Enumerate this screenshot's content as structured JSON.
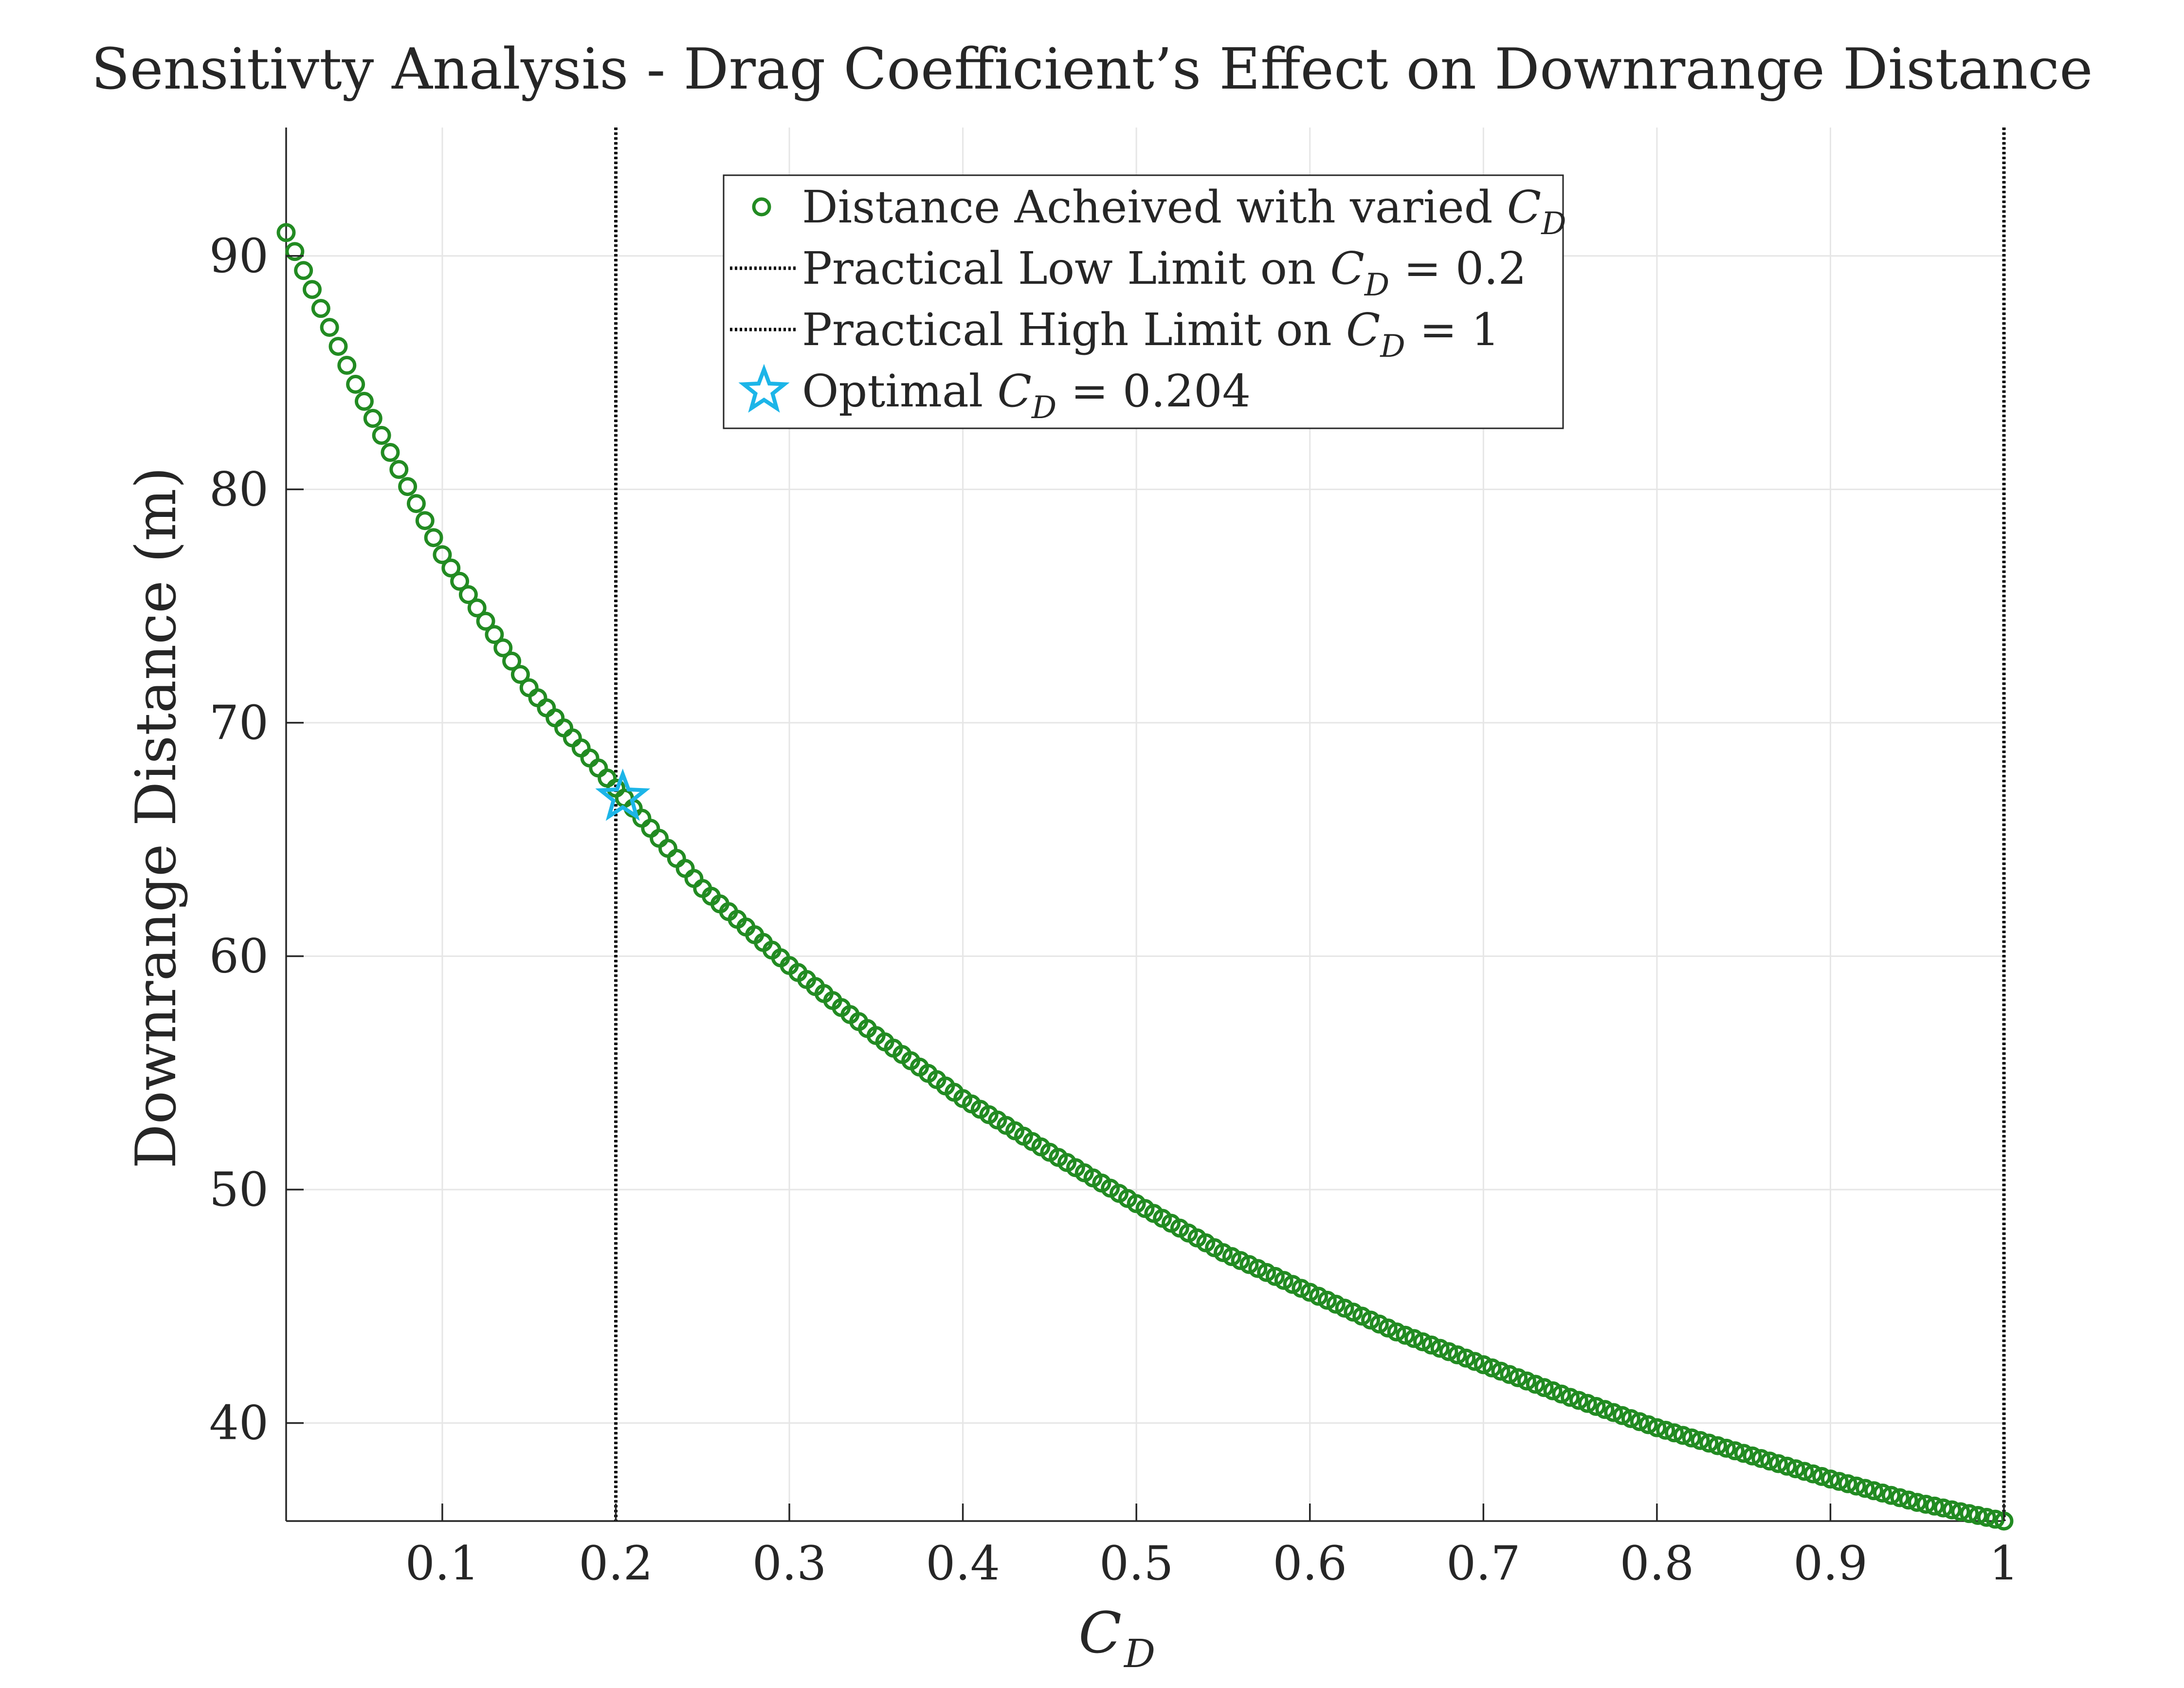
{
  "chart_data": {
    "type": "scatter",
    "title": "Sensitivty Analysis - Drag Coefficient’s Effect on Downrange Distance",
    "xlabel": {
      "base": "C",
      "sub": "D"
    },
    "ylabel": "Downrange Distance (m)",
    "xlim": [
      0.01,
      1.0
    ],
    "ylim": [
      35.8,
      95.5
    ],
    "xticks": [
      0.1,
      0.2,
      0.3,
      0.4,
      0.5,
      0.6,
      0.7,
      0.8,
      0.9,
      1
    ],
    "xtick_labels": [
      "0.1",
      "0.2",
      "0.3",
      "0.4",
      "0.5",
      "0.6",
      "0.7",
      "0.8",
      "0.9",
      "1"
    ],
    "yticks": [
      40,
      50,
      60,
      70,
      80,
      90
    ],
    "ytick_labels": [
      "40",
      "50",
      "60",
      "70",
      "80",
      "90"
    ],
    "grid": true,
    "legend_position": "top-center",
    "colors": {
      "series": "#228B22",
      "limit_lines": "#000000",
      "optimal": "#1CB5E8",
      "grid": "#e6e6e6",
      "axes": "#262626"
    },
    "series": [
      {
        "name": "Distance Acheived with varied C_D",
        "marker": "circle",
        "x_start": 0.01,
        "x_end": 1.0,
        "x_step": 0.005,
        "sample_x": [
          0.01,
          0.05,
          0.1,
          0.15,
          0.2,
          0.25,
          0.3,
          0.35,
          0.4,
          0.45,
          0.5,
          0.55,
          0.6,
          0.65,
          0.7,
          0.75,
          0.8,
          0.85,
          0.9,
          0.95,
          1.0
        ],
        "sample_y": [
          91.0,
          84.5,
          77.2,
          71.5,
          67.2,
          62.9,
          59.6,
          56.6,
          53.9,
          51.6,
          49.4,
          47.3,
          45.6,
          43.9,
          42.5,
          41.1,
          39.8,
          38.7,
          37.6,
          36.6,
          35.8
        ]
      }
    ],
    "reference_lines": [
      {
        "x": 0.2,
        "style": "dotted"
      },
      {
        "x": 1.0,
        "style": "dotted"
      }
    ],
    "optimal_point": {
      "x": 0.204,
      "y": 66.8,
      "marker": "star"
    },
    "legend": {
      "entries": [
        {
          "marker": "circle",
          "text": "Distance Acheived with varied ",
          "math_base": "C",
          "math_sub": "D",
          "math_rest": ""
        },
        {
          "marker": "dotted-line",
          "text": "Practical Low Limit on ",
          "math_base": "C",
          "math_sub": "D",
          "math_rest": " = 0.2"
        },
        {
          "marker": "dotted-line",
          "text": "Practical High Limit on ",
          "math_base": "C",
          "math_sub": "D",
          "math_rest": " = 1"
        },
        {
          "marker": "star",
          "text": "Optimal ",
          "math_base": "C",
          "math_sub": "D",
          "math_rest": " = 0.204"
        }
      ]
    }
  }
}
